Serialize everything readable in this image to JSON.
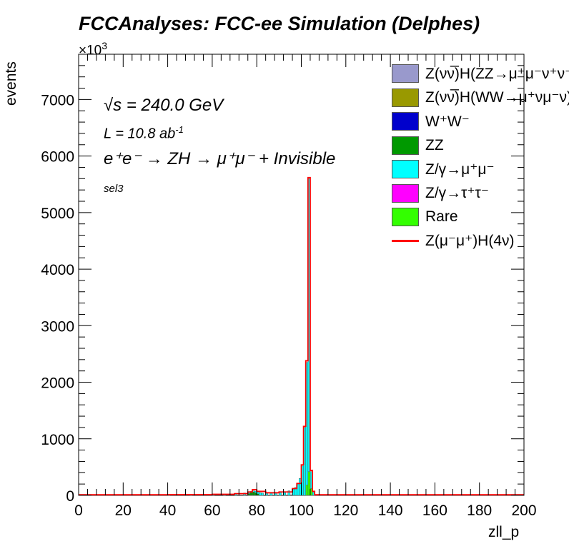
{
  "title": "FCCAnalyses: FCC-ee Simulation (Delphes)",
  "exponent_label": "×10",
  "exponent_power": "3",
  "annotations": {
    "energy": "√s = 240.0 GeV",
    "lumi": "L = 10.8 ab",
    "lumi_power": "-1",
    "process": "e⁺e⁻ → ZH → μ⁺μ⁻ + Invisible",
    "selection": "sel3"
  },
  "legend": [
    {
      "label": "Z(νν̅)H(ZZ→μ⁺μ⁻ν⁺ν⁻)",
      "color": "#9999cc",
      "style": "fill"
    },
    {
      "label": "Z(νν̅)H(WW→μ⁺νμ⁻ν)",
      "color": "#999900",
      "style": "fill"
    },
    {
      "label": "W⁺W⁻",
      "color": "#0000cc",
      "style": "fill"
    },
    {
      "label": "ZZ",
      "color": "#009900",
      "style": "fill"
    },
    {
      "label": "Z/γ→μ⁺μ⁻",
      "color": "#00ffff",
      "style": "fill"
    },
    {
      "label": "Z/γ→τ⁺τ⁻",
      "color": "#ff00ff",
      "style": "fill"
    },
    {
      "label": "Rare",
      "color": "#33ff00",
      "style": "fill"
    },
    {
      "label": "Z(μ⁻μ⁺)H(4ν)",
      "color": "#ff0000",
      "style": "line"
    }
  ],
  "chart_data": {
    "type": "bar",
    "title": "FCCAnalyses: FCC-ee Simulation (Delphes)",
    "xlabel": "zll_p",
    "ylabel": "events",
    "y_multiplier": 1000,
    "xlim": [
      0,
      200
    ],
    "ylim": [
      0,
      7800
    ],
    "x_ticks": [
      0,
      20,
      40,
      60,
      80,
      100,
      120,
      140,
      160,
      180,
      200
    ],
    "y_ticks": [
      0,
      1000,
      2000,
      3000,
      4000,
      5000,
      6000,
      7000
    ],
    "bin_width": 1,
    "stack_series": [
      {
        "name": "Z/γ→μ⁺μ⁻",
        "color": "#00ffff",
        "bins": [
          [
            40,
            10
          ],
          [
            50,
            12
          ],
          [
            60,
            15
          ],
          [
            65,
            20
          ],
          [
            70,
            30
          ],
          [
            74,
            40
          ],
          [
            76,
            55
          ],
          [
            77,
            70
          ],
          [
            78,
            80
          ],
          [
            79,
            75
          ],
          [
            80,
            60
          ],
          [
            81,
            45
          ],
          [
            82,
            40
          ],
          [
            84,
            40
          ],
          [
            86,
            45
          ],
          [
            88,
            50
          ],
          [
            90,
            55
          ],
          [
            92,
            65
          ],
          [
            94,
            80
          ],
          [
            96,
            110
          ],
          [
            97,
            140
          ],
          [
            98,
            200
          ],
          [
            99,
            300
          ],
          [
            100,
            520
          ],
          [
            101,
            1200
          ],
          [
            102,
            2350
          ],
          [
            103,
            5600
          ],
          [
            104,
            420
          ],
          [
            105,
            60
          ]
        ]
      },
      {
        "name": "ZZ",
        "color": "#009900",
        "bins": [
          [
            76,
            30
          ],
          [
            77,
            50
          ],
          [
            78,
            60
          ],
          [
            79,
            45
          ],
          [
            80,
            25
          ]
        ]
      },
      {
        "name": "Rare",
        "color": "#33ff00",
        "bins": [
          [
            102,
            180
          ],
          [
            103,
            420
          ],
          [
            104,
            120
          ]
        ]
      }
    ],
    "signal_line": {
      "name": "Z(μ⁻μ⁺)H(4ν)",
      "color": "#ff0000",
      "points": [
        [
          0,
          10
        ],
        [
          40,
          12
        ],
        [
          60,
          18
        ],
        [
          70,
          30
        ],
        [
          76,
          60
        ],
        [
          78,
          100
        ],
        [
          80,
          70
        ],
        [
          84,
          45
        ],
        [
          90,
          60
        ],
        [
          96,
          120
        ],
        [
          98,
          210
        ],
        [
          100,
          540
        ],
        [
          101,
          1220
        ],
        [
          102,
          2380
        ],
        [
          103,
          5620
        ],
        [
          104,
          440
        ],
        [
          105,
          70
        ],
        [
          106,
          10
        ],
        [
          200,
          10
        ]
      ]
    }
  }
}
